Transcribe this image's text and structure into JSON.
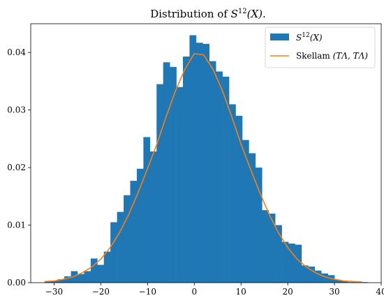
{
  "chart_data": {
    "type": "bar",
    "subtype": "histogram-with-line",
    "title": "Distribution of S^12(X).",
    "title_parts": {
      "prefix": "Distribution of ",
      "var": "S",
      "sup": "12",
      "arg": "(X)",
      "suffix": "."
    },
    "xlim": [
      -35,
      40
    ],
    "ylim": [
      0,
      0.045
    ],
    "xticks": [
      -30,
      -20,
      -10,
      0,
      10,
      20,
      30,
      40
    ],
    "xtick_labels": [
      "−30",
      "−20",
      "−10",
      "0",
      "10",
      "20",
      "30",
      "40"
    ],
    "yticks": [
      0,
      0.01,
      0.02,
      0.03,
      0.04
    ],
    "ytick_labels": [
      "0.00",
      "0.01",
      "0.02",
      "0.03",
      "0.04"
    ],
    "grid": false,
    "legend_position": "top-right",
    "colors": {
      "histogram": "#1f77b4",
      "line": "#ff7f0e",
      "axis": "#000000"
    },
    "histogram": {
      "name": "S^12(X)",
      "legend_parts": {
        "var": "S",
        "sup": "12",
        "arg": "(X)"
      },
      "bin_edges": [
        -32.04,
        -30.63,
        -29.22,
        -27.81,
        -26.4,
        -24.99,
        -23.58,
        -22.17,
        -20.76,
        -19.35,
        -17.94,
        -16.53,
        -15.12,
        -13.71,
        -12.3,
        -10.89,
        -9.48,
        -8.07,
        -6.66,
        -5.25,
        -3.84,
        -2.43,
        -1.02,
        0.39,
        1.8,
        3.21,
        4.62,
        6.03,
        7.44,
        8.85,
        10.26,
        11.67,
        13.08,
        14.49,
        15.9,
        17.31,
        18.72,
        20.13,
        21.54,
        22.95,
        24.36,
        25.77,
        27.18,
        28.59,
        30.0,
        31.41,
        32.82,
        34.23,
        35.64,
        37.05
      ],
      "values": [
        0.0003,
        0.0003,
        0.0006,
        0.0011,
        0.002,
        0.0015,
        0.002,
        0.0042,
        0.0031,
        0.0054,
        0.0105,
        0.0123,
        0.0152,
        0.0177,
        0.0198,
        0.0253,
        0.0228,
        0.0345,
        0.0383,
        0.0375,
        0.034,
        0.0393,
        0.043,
        0.0417,
        0.0415,
        0.0385,
        0.0367,
        0.0358,
        0.031,
        0.029,
        0.0248,
        0.0225,
        0.02,
        0.0126,
        0.012,
        0.01,
        0.0071,
        0.0068,
        0.0066,
        0.003,
        0.0028,
        0.0021,
        0.0016,
        0.0013,
        0.0005,
        0.0003,
        0.0001,
        0.0001,
        0.0001
      ]
    },
    "line": {
      "name": "Skellam (TΛ, TΛ)",
      "legend_parts": {
        "text": "Skellam ",
        "math": "(TΛ, TΛ)"
      },
      "x": [
        -32,
        -30,
        -28,
        -26,
        -24,
        -22,
        -20,
        -18,
        -16,
        -14,
        -12,
        -10,
        -8,
        -6,
        -4,
        -2,
        0,
        2,
        4,
        6,
        8,
        10,
        12,
        14,
        16,
        18,
        20,
        22,
        24,
        26,
        28,
        30,
        32,
        34,
        36
      ],
      "y": [
        0.0002,
        0.0003,
        0.0006,
        0.001,
        0.0017,
        0.0027,
        0.0041,
        0.0061,
        0.0087,
        0.0119,
        0.0157,
        0.0198,
        0.0241,
        0.0289,
        0.0334,
        0.0371,
        0.0398,
        0.0396,
        0.0371,
        0.0334,
        0.0289,
        0.0241,
        0.0198,
        0.0157,
        0.0119,
        0.0087,
        0.0061,
        0.0041,
        0.0027,
        0.0017,
        0.001,
        0.0006,
        0.0003,
        0.0002,
        0.0001
      ]
    }
  }
}
